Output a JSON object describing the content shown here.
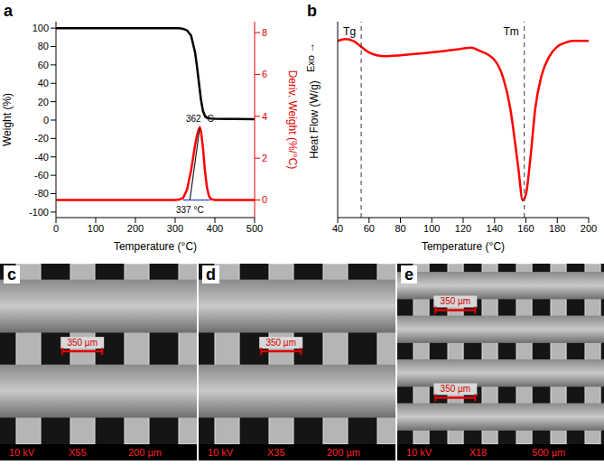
{
  "chart_data": [
    {
      "type": "line",
      "title": "a",
      "x_label": "Temperature (°C)",
      "y_label": "Weight (%)",
      "y2_label": "Deriv. Weight (%/°C)",
      "xlim": [
        0,
        500
      ],
      "xticks": [
        0,
        100,
        200,
        300,
        400,
        500
      ],
      "ylim": [
        -106,
        107
      ],
      "yticks": [
        -100,
        -80,
        -60,
        -40,
        -20,
        0,
        20,
        40,
        60,
        80,
        100
      ],
      "y2lim": [
        -0.84,
        8.52
      ],
      "y2ticks": [
        0,
        2,
        4,
        6,
        8
      ],
      "series": [
        {
          "color": "#000000",
          "x": [
            0,
            50,
            100,
            150,
            200,
            250,
            300,
            310,
            320,
            330,
            340,
            350,
            355,
            360,
            365,
            370,
            375,
            380,
            390,
            400,
            450,
            500
          ],
          "values": [
            100,
            100,
            100,
            100,
            100,
            100,
            100,
            99.8,
            99.2,
            97.5,
            92,
            74,
            58,
            40,
            22,
            10,
            4.5,
            2.5,
            1.8,
            1.5,
            1.2,
            1
          ]
        },
        {
          "color": "#ff0000",
          "axis": "y2",
          "x": [
            0,
            50,
            100,
            150,
            200,
            250,
            300,
            310,
            320,
            330,
            340,
            350,
            355,
            360,
            362,
            365,
            370,
            375,
            380,
            385,
            390,
            400,
            450,
            500
          ],
          "values": [
            0,
            0,
            0,
            0,
            0,
            0,
            0,
            0.02,
            0.1,
            0.5,
            1.4,
            2.6,
            3.1,
            3.4,
            3.45,
            3.3,
            2.5,
            1.4,
            0.6,
            0.2,
            0.05,
            0,
            0,
            0
          ]
        },
        {
          "color": "#2040d0",
          "axis": "y2",
          "x": [
            320,
            388
          ],
          "values": [
            0,
            0
          ]
        },
        {
          "color": "#1a1a1a",
          "axis": "y2",
          "x": [
            337,
            362
          ],
          "values": [
            0,
            3.45
          ]
        }
      ],
      "annotations": [
        {
          "text": "362 °C",
          "x": 362,
          "y": 3.45,
          "axis": "y2"
        },
        {
          "text": "337 °C",
          "x": 337,
          "y": 0,
          "axis": "y2"
        }
      ]
    },
    {
      "type": "line",
      "title": "b",
      "x_label": "Temperature (°C)",
      "y_label": "Heat Flow (W/g)",
      "tick_labels": "x",
      "xlim": [
        40,
        200
      ],
      "xticks": [
        40,
        60,
        80,
        100,
        120,
        140,
        160,
        180,
        200
      ],
      "ylim": [
        -9.2,
        1
      ],
      "series": [
        {
          "color": "#ff0000",
          "x": [
            40,
            45,
            50,
            55,
            60,
            70,
            80,
            100,
            120,
            125,
            130,
            140,
            145,
            150,
            155,
            158,
            160,
            163,
            166,
            170,
            175,
            180,
            185,
            190,
            200
          ],
          "values": [
            0,
            0.1,
            0,
            -0.3,
            -0.6,
            -0.8,
            -0.75,
            -0.6,
            -0.4,
            -0.35,
            -0.5,
            -1,
            -1.8,
            -3.5,
            -6.5,
            -8.3,
            -8,
            -6,
            -3.5,
            -1.8,
            -0.8,
            -0.3,
            -0.1,
            0,
            0
          ]
        }
      ],
      "reference_lines": [
        {
          "x": 55,
          "label": "Tg",
          "line_style": "dashed"
        },
        {
          "x": 159,
          "label": "Tm",
          "line_style": "dashed"
        }
      ],
      "annotations": [
        {
          "text": "Exo →"
        }
      ]
    }
  ],
  "images": [
    {
      "label": "c",
      "scale_labels": [
        "350 µm"
      ],
      "footer": [
        "10 kV",
        "X55",
        "200 µm"
      ]
    },
    {
      "label": "d",
      "scale_labels": [
        "350 µm"
      ],
      "footer": [
        "10 kV",
        "X35",
        "200 µm"
      ]
    },
    {
      "label": "e",
      "scale_labels": [
        "350 µm",
        "350 µm"
      ],
      "footer": [
        "10 kV",
        "X18",
        "500 µm"
      ]
    }
  ]
}
